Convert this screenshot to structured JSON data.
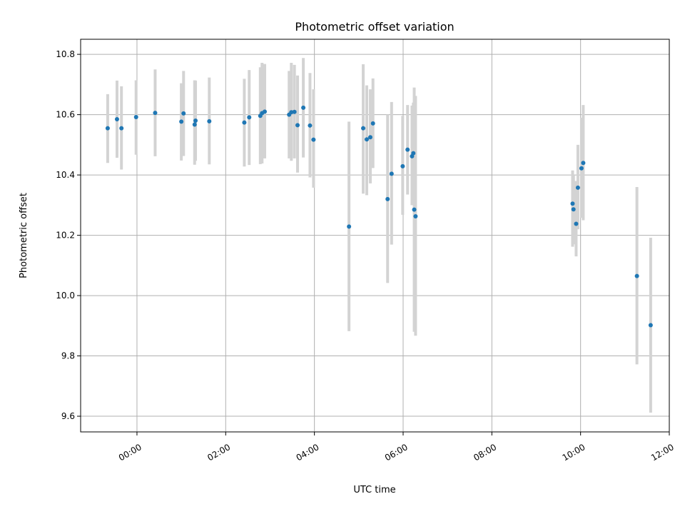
{
  "chart_data": {
    "type": "scatter",
    "title": "Photometric offset variation",
    "xlabel": "UTC time",
    "ylabel": "Photometric offset",
    "x_unit": "UTC hours",
    "xlim": [
      -1.27,
      12.0
    ],
    "ylim": [
      9.548,
      10.85
    ],
    "xticks": [
      {
        "value": 0,
        "label": "00:00"
      },
      {
        "value": 2,
        "label": "02:00"
      },
      {
        "value": 4,
        "label": "04:00"
      },
      {
        "value": 6,
        "label": "06:00"
      },
      {
        "value": 8,
        "label": "08:00"
      },
      {
        "value": 10,
        "label": "10:00"
      },
      {
        "value": 12,
        "label": "12:00"
      }
    ],
    "yticks": [
      {
        "value": 9.6,
        "label": "9.6"
      },
      {
        "value": 9.8,
        "label": "9.8"
      },
      {
        "value": 10.0,
        "label": "10.0"
      },
      {
        "value": 10.2,
        "label": "10.2"
      },
      {
        "value": 10.4,
        "label": "10.4"
      },
      {
        "value": 10.6,
        "label": "10.6"
      },
      {
        "value": 10.8,
        "label": "10.8"
      }
    ],
    "grid": true,
    "colors": {
      "point": "#1f77b4",
      "errorbar": "#d3d3d3",
      "grid": "#b0b0b0"
    },
    "points": [
      {
        "x": -0.66,
        "y": 10.555,
        "ylow": 10.44,
        "yhigh": 10.668
      },
      {
        "x": -0.45,
        "y": 10.585,
        "ylow": 10.457,
        "yhigh": 10.713
      },
      {
        "x": -0.35,
        "y": 10.555,
        "ylow": 10.418,
        "yhigh": 10.694
      },
      {
        "x": -0.02,
        "y": 10.592,
        "ylow": 10.467,
        "yhigh": 10.714
      },
      {
        "x": 0.41,
        "y": 10.606,
        "ylow": 10.462,
        "yhigh": 10.75
      },
      {
        "x": 1.0,
        "y": 10.577,
        "ylow": 10.448,
        "yhigh": 10.704
      },
      {
        "x": 1.05,
        "y": 10.604,
        "ylow": 10.463,
        "yhigh": 10.745
      },
      {
        "x": 1.3,
        "y": 10.567,
        "ylow": 10.434,
        "yhigh": 10.714
      },
      {
        "x": 1.32,
        "y": 10.58,
        "ylow": 10.447,
        "yhigh": 10.713
      },
      {
        "x": 1.63,
        "y": 10.578,
        "ylow": 10.435,
        "yhigh": 10.723
      },
      {
        "x": 2.42,
        "y": 10.574,
        "ylow": 10.428,
        "yhigh": 10.719
      },
      {
        "x": 2.53,
        "y": 10.591,
        "ylow": 10.433,
        "yhigh": 10.748
      },
      {
        "x": 2.78,
        "y": 10.596,
        "ylow": 10.436,
        "yhigh": 10.757
      },
      {
        "x": 2.82,
        "y": 10.605,
        "ylow": 10.438,
        "yhigh": 10.772
      },
      {
        "x": 2.88,
        "y": 10.61,
        "ylow": 10.455,
        "yhigh": 10.768
      },
      {
        "x": 3.43,
        "y": 10.6,
        "ylow": 10.455,
        "yhigh": 10.745
      },
      {
        "x": 3.48,
        "y": 10.608,
        "ylow": 10.447,
        "yhigh": 10.772
      },
      {
        "x": 3.55,
        "y": 10.609,
        "ylow": 10.455,
        "yhigh": 10.765
      },
      {
        "x": 3.62,
        "y": 10.565,
        "ylow": 10.408,
        "yhigh": 10.73
      },
      {
        "x": 3.75,
        "y": 10.623,
        "ylow": 10.458,
        "yhigh": 10.788
      },
      {
        "x": 3.9,
        "y": 10.564,
        "ylow": 10.392,
        "yhigh": 10.738
      },
      {
        "x": 3.98,
        "y": 10.517,
        "ylow": 10.358,
        "yhigh": 10.684
      },
      {
        "x": 4.78,
        "y": 10.229,
        "ylow": 9.882,
        "yhigh": 10.577
      },
      {
        "x": 5.1,
        "y": 10.555,
        "ylow": 10.338,
        "yhigh": 10.767
      },
      {
        "x": 5.18,
        "y": 10.518,
        "ylow": 10.333,
        "yhigh": 10.697
      },
      {
        "x": 5.26,
        "y": 10.525,
        "ylow": 10.372,
        "yhigh": 10.684
      },
      {
        "x": 5.32,
        "y": 10.571,
        "ylow": 10.423,
        "yhigh": 10.72
      },
      {
        "x": 5.65,
        "y": 10.32,
        "ylow": 10.042,
        "yhigh": 10.6
      },
      {
        "x": 5.74,
        "y": 10.404,
        "ylow": 10.169,
        "yhigh": 10.642
      },
      {
        "x": 5.99,
        "y": 10.429,
        "ylow": 10.268,
        "yhigh": 10.596
      },
      {
        "x": 6.1,
        "y": 10.484,
        "ylow": 10.335,
        "yhigh": 10.632
      },
      {
        "x": 6.2,
        "y": 10.462,
        "ylow": 10.3,
        "yhigh": 10.63
      },
      {
        "x": 6.23,
        "y": 10.472,
        "ylow": 10.3,
        "yhigh": 10.64
      },
      {
        "x": 6.25,
        "y": 10.285,
        "ylow": 9.88,
        "yhigh": 10.69
      },
      {
        "x": 6.28,
        "y": 10.263,
        "ylow": 9.867,
        "yhigh": 10.662
      },
      {
        "x": 9.82,
        "y": 10.305,
        "ylow": 10.162,
        "yhigh": 10.415
      },
      {
        "x": 9.84,
        "y": 10.286,
        "ylow": 10.17,
        "yhigh": 10.4
      },
      {
        "x": 9.9,
        "y": 10.238,
        "ylow": 10.13,
        "yhigh": 10.38
      },
      {
        "x": 9.94,
        "y": 10.358,
        "ylow": 10.22,
        "yhigh": 10.5
      },
      {
        "x": 10.02,
        "y": 10.422,
        "ylow": 10.258,
        "yhigh": 10.59
      },
      {
        "x": 10.06,
        "y": 10.44,
        "ylow": 10.25,
        "yhigh": 10.632
      },
      {
        "x": 11.27,
        "y": 10.065,
        "ylow": 9.772,
        "yhigh": 10.36
      },
      {
        "x": 11.58,
        "y": 9.902,
        "ylow": 9.612,
        "yhigh": 10.192
      }
    ]
  }
}
